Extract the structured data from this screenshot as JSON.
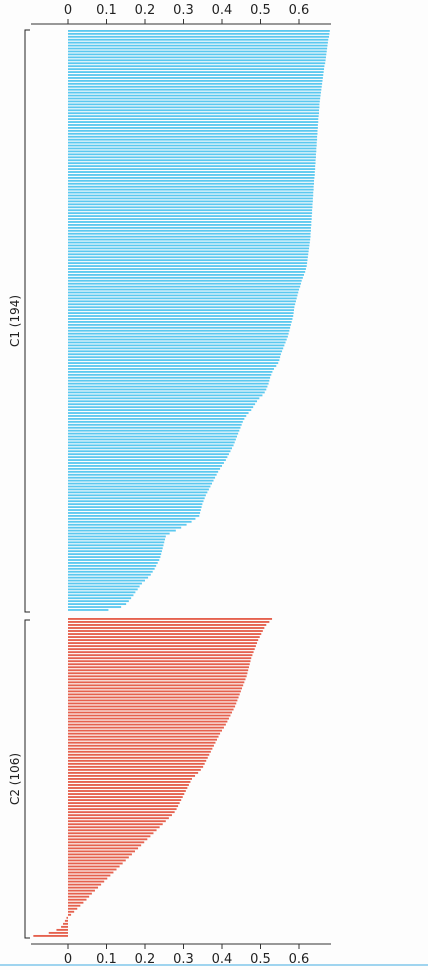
{
  "chart_data": {
    "type": "bar",
    "orientation": "horizontal",
    "xlim": [
      -0.1,
      0.685
    ],
    "xticks": [
      0,
      0.1,
      0.2,
      0.3,
      0.4,
      0.5,
      0.6
    ],
    "xtick_labels": [
      "0",
      "0.1",
      "0.2",
      "0.3",
      "0.4",
      "0.5",
      "0.6"
    ],
    "grid": false,
    "series": [
      {
        "name": "C1 (194)",
        "color": "#5bc8ef",
        "count": 194,
        "values": [
          0.68,
          0.679,
          0.678,
          0.676,
          0.675,
          0.674,
          0.673,
          0.672,
          0.671,
          0.67,
          0.669,
          0.668,
          0.666,
          0.665,
          0.664,
          0.663,
          0.662,
          0.661,
          0.66,
          0.659,
          0.658,
          0.657,
          0.656,
          0.655,
          0.654,
          0.653,
          0.653,
          0.652,
          0.652,
          0.651,
          0.65,
          0.65,
          0.649,
          0.649,
          0.648,
          0.648,
          0.647,
          0.647,
          0.646,
          0.646,
          0.645,
          0.645,
          0.644,
          0.644,
          0.643,
          0.643,
          0.642,
          0.642,
          0.641,
          0.641,
          0.64,
          0.639,
          0.639,
          0.638,
          0.638,
          0.637,
          0.637,
          0.636,
          0.636,
          0.635,
          0.635,
          0.634,
          0.634,
          0.633,
          0.633,
          0.632,
          0.632,
          0.631,
          0.631,
          0.63,
          0.63,
          0.629,
          0.628,
          0.627,
          0.626,
          0.625,
          0.624,
          0.623,
          0.622,
          0.621,
          0.62,
          0.618,
          0.616,
          0.613,
          0.61,
          0.607,
          0.605,
          0.603,
          0.6,
          0.598,
          0.596,
          0.594,
          0.592,
          0.59,
          0.588,
          0.587,
          0.586,
          0.585,
          0.583,
          0.581,
          0.579,
          0.577,
          0.575,
          0.573,
          0.571,
          0.568,
          0.565,
          0.562,
          0.559,
          0.556,
          0.553,
          0.551,
          0.549,
          0.546,
          0.541,
          0.535,
          0.531,
          0.528,
          0.525,
          0.523,
          0.521,
          0.518,
          0.515,
          0.511,
          0.505,
          0.497,
          0.491,
          0.486,
          0.481,
          0.476,
          0.469,
          0.463,
          0.458,
          0.454,
          0.451,
          0.448,
          0.445,
          0.442,
          0.439,
          0.436,
          0.433,
          0.43,
          0.426,
          0.422,
          0.418,
          0.414,
          0.41,
          0.405,
          0.4,
          0.395,
          0.39,
          0.386,
          0.382,
          0.378,
          0.374,
          0.37,
          0.366,
          0.362,
          0.358,
          0.355,
          0.352,
          0.349,
          0.347,
          0.345,
          0.343,
          0.341,
          0.331,
          0.321,
          0.308,
          0.294,
          0.28,
          0.264,
          0.254,
          0.252,
          0.25,
          0.248,
          0.246,
          0.244,
          0.242,
          0.24,
          0.237,
          0.233,
          0.229,
          0.225,
          0.22,
          0.215,
          0.208,
          0.2,
          0.192,
          0.186,
          0.181,
          0.175,
          0.17,
          0.164,
          0.158,
          0.151,
          0.138,
          0.105
        ]
      },
      {
        "name": "C2 (106)",
        "color": "#e5614e",
        "count": 106,
        "values": [
          0.53,
          0.523,
          0.515,
          0.51,
          0.506,
          0.502,
          0.498,
          0.494,
          0.491,
          0.488,
          0.485,
          0.482,
          0.479,
          0.476,
          0.474,
          0.472,
          0.47,
          0.468,
          0.466,
          0.464,
          0.461,
          0.458,
          0.455,
          0.452,
          0.449,
          0.446,
          0.443,
          0.44,
          0.437,
          0.434,
          0.43,
          0.426,
          0.422,
          0.418,
          0.414,
          0.41,
          0.405,
          0.4,
          0.395,
          0.391,
          0.387,
          0.383,
          0.379,
          0.375,
          0.371,
          0.367,
          0.363,
          0.359,
          0.355,
          0.351,
          0.345,
          0.338,
          0.33,
          0.322,
          0.318,
          0.314,
          0.31,
          0.306,
          0.302,
          0.298,
          0.294,
          0.29,
          0.286,
          0.282,
          0.277,
          0.27,
          0.262,
          0.254,
          0.246,
          0.238,
          0.23,
          0.222,
          0.214,
          0.206,
          0.198,
          0.19,
          0.182,
          0.174,
          0.166,
          0.158,
          0.15,
          0.142,
          0.134,
          0.126,
          0.118,
          0.11,
          0.102,
          0.094,
          0.086,
          0.078,
          0.07,
          0.062,
          0.055,
          0.048,
          0.04,
          0.032,
          0.024,
          0.016,
          0.008,
          -0.004,
          -0.008,
          -0.013,
          -0.018,
          -0.03,
          -0.05,
          -0.09
        ]
      }
    ]
  }
}
